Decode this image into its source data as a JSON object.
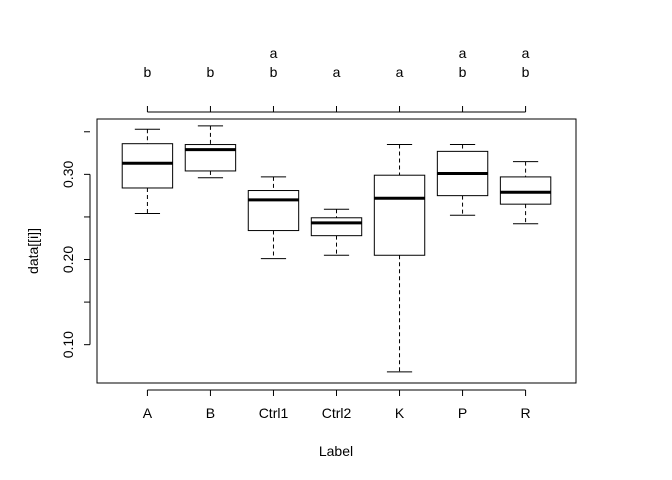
{
  "chart_data": {
    "type": "boxplot",
    "xlabel": "Label",
    "ylabel": "data[[i]]",
    "ylim": [
      0.055,
      0.365
    ],
    "y_ticks": [
      0.1,
      0.2,
      0.3
    ],
    "y_tick_labels": [
      "0.10",
      "0.20",
      "0.30"
    ],
    "categories": [
      "A",
      "B",
      "Ctrl1",
      "Ctrl2",
      "K",
      "P",
      "R"
    ],
    "boxes": [
      {
        "label": "A",
        "min": 0.254,
        "q1": 0.284,
        "median": 0.313,
        "q3": 0.336,
        "max": 0.353
      },
      {
        "label": "B",
        "min": 0.296,
        "q1": 0.304,
        "median": 0.329,
        "q3": 0.335,
        "max": 0.357
      },
      {
        "label": "Ctrl1",
        "min": 0.201,
        "q1": 0.234,
        "median": 0.27,
        "q3": 0.281,
        "max": 0.297
      },
      {
        "label": "Ctrl2",
        "min": 0.205,
        "q1": 0.228,
        "median": 0.243,
        "q3": 0.249,
        "max": 0.259
      },
      {
        "label": "K",
        "min": 0.068,
        "q1": 0.205,
        "median": 0.272,
        "q3": 0.299,
        "max": 0.335
      },
      {
        "label": "P",
        "min": 0.252,
        "q1": 0.275,
        "median": 0.301,
        "q3": 0.327,
        "max": 0.335
      },
      {
        "label": "R",
        "min": 0.242,
        "q1": 0.265,
        "median": 0.279,
        "q3": 0.297,
        "max": 0.315
      }
    ],
    "group_letters": [
      [
        "b"
      ],
      [
        "b"
      ],
      [
        "a",
        "b"
      ],
      [
        "a"
      ],
      [
        "a"
      ],
      [
        "a",
        "b"
      ],
      [
        "a",
        "b"
      ]
    ]
  }
}
